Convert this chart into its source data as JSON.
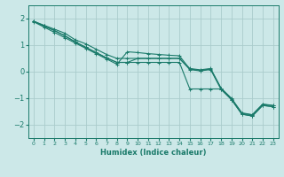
{
  "xlabel": "Humidex (Indice chaleur)",
  "background_color": "#cce8e8",
  "grid_color": "#aacccc",
  "line_color": "#1a7a6a",
  "xlim": [
    -0.5,
    23.5
  ],
  "ylim": [
    -2.5,
    2.5
  ],
  "yticks": [
    -2,
    -1,
    0,
    1,
    2
  ],
  "xticks": [
    0,
    1,
    2,
    3,
    4,
    5,
    6,
    7,
    8,
    9,
    10,
    11,
    12,
    13,
    14,
    15,
    16,
    17,
    18,
    19,
    20,
    21,
    22,
    23
  ],
  "line1_x": [
    0,
    1,
    2,
    3,
    4,
    5,
    6,
    7,
    8,
    9,
    10,
    11,
    12,
    13,
    14,
    15,
    16,
    17,
    18,
    19,
    20,
    21,
    22,
    23
  ],
  "line1_y": [
    1.9,
    1.75,
    1.6,
    1.45,
    1.2,
    1.05,
    0.85,
    0.65,
    0.5,
    0.5,
    0.5,
    0.5,
    0.5,
    0.5,
    0.5,
    0.12,
    0.07,
    0.12,
    -0.62,
    -1.0,
    -1.55,
    -1.62,
    -1.22,
    -1.27
  ],
  "line2_x": [
    0,
    1,
    2,
    3,
    4,
    5,
    6,
    7,
    8,
    9,
    10,
    11,
    12,
    13,
    14,
    15,
    16,
    17,
    18,
    19,
    20,
    21,
    22,
    23
  ],
  "line2_y": [
    1.9,
    1.72,
    1.55,
    1.35,
    1.12,
    0.92,
    0.72,
    0.52,
    0.35,
    0.35,
    0.5,
    0.5,
    0.5,
    0.5,
    0.5,
    0.08,
    0.03,
    0.08,
    -0.67,
    -1.05,
    -1.6,
    -1.67,
    -1.27,
    -1.32
  ],
  "line3_x": [
    0,
    1,
    2,
    3,
    4,
    5,
    6,
    7,
    8,
    9,
    10,
    11,
    12,
    13,
    14,
    15,
    16,
    17,
    18,
    19,
    20,
    21,
    22,
    23
  ],
  "line3_y": [
    1.9,
    1.72,
    1.55,
    1.35,
    1.12,
    0.92,
    0.72,
    0.52,
    0.35,
    0.35,
    0.35,
    0.35,
    0.35,
    0.35,
    0.35,
    -0.65,
    -0.65,
    -0.65,
    -0.65,
    -1.05,
    -1.6,
    -1.67,
    -1.27,
    -1.32
  ],
  "line4_x": [
    0,
    1,
    2,
    3,
    4,
    5,
    6,
    7,
    8,
    9,
    10,
    11,
    12,
    13,
    14,
    15,
    16,
    17,
    18,
    19,
    20,
    21,
    22,
    23
  ],
  "line4_y": [
    1.88,
    1.68,
    1.48,
    1.28,
    1.08,
    0.88,
    0.68,
    0.48,
    0.28,
    0.75,
    0.72,
    0.68,
    0.65,
    0.62,
    0.6,
    0.1,
    0.05,
    0.1,
    -0.63,
    -1.02,
    -1.57,
    -1.63,
    -1.23,
    -1.28
  ]
}
